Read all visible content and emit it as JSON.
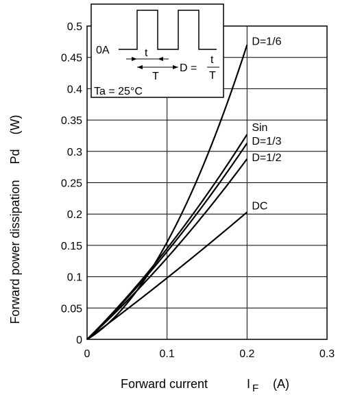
{
  "chart_data": {
    "type": "line",
    "title": "",
    "xlabel": {
      "main": "Forward current",
      "symbol": "I",
      "sub": "F",
      "unit": "(A)"
    },
    "ylabel": {
      "main": "Forward power dissipation",
      "symbol": "Pd",
      "unit": "(W)"
    },
    "xlim": [
      0,
      0.3
    ],
    "ylim": [
      0,
      0.5
    ],
    "x_ticks": [
      0,
      0.1,
      0.2,
      0.3
    ],
    "x_tick_labels": [
      "0",
      "0.1",
      "0.2",
      "0.3"
    ],
    "y_ticks": [
      0,
      0.05,
      0.1,
      0.15,
      0.2,
      0.25,
      0.3,
      0.35,
      0.4,
      0.45,
      0.5
    ],
    "y_tick_labels": [
      "0",
      "0.05",
      "0.1",
      "0.15",
      "0.2",
      "0.25",
      "0.3",
      "0.35",
      "0.4",
      "0.45",
      "0.5"
    ],
    "grid": true,
    "legend": "labels at line ends",
    "series": [
      {
        "name": "D=1/6",
        "x": [
          0,
          0.1,
          0.2
        ],
        "y": [
          0,
          0.155,
          0.47
        ]
      },
      {
        "name": "Sin",
        "x": [
          0,
          0.1,
          0.2
        ],
        "y": [
          0,
          0.145,
          0.327
        ]
      },
      {
        "name": "D=1/3",
        "x": [
          0,
          0.1,
          0.2
        ],
        "y": [
          0,
          0.14,
          0.313
        ]
      },
      {
        "name": "D=1/2",
        "x": [
          0,
          0.1,
          0.2
        ],
        "y": [
          0,
          0.13,
          0.288
        ]
      },
      {
        "name": "DC",
        "x": [
          0,
          0.1,
          0.2
        ],
        "y": [
          0,
          0.098,
          0.203
        ]
      }
    ],
    "inset": {
      "zero_label": "0A",
      "t_label": "t",
      "T_label": "T",
      "duty_prefix": "D =",
      "duty_num": "t",
      "duty_den": "T",
      "ambient": "Ta = 25°C"
    }
  }
}
